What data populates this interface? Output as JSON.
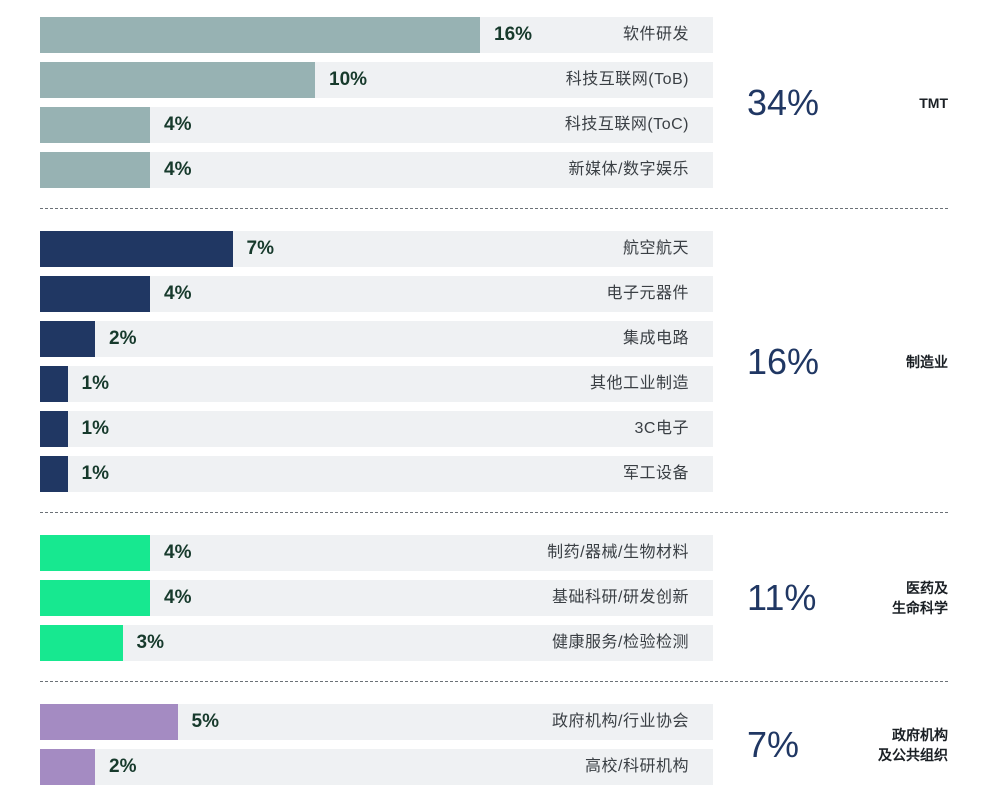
{
  "chart_data": {
    "type": "bar",
    "orientation": "horizontal",
    "value_unit": "%",
    "xlim": [
      0,
      100
    ],
    "groups": [
      {
        "name": "TMT",
        "total": "34%",
        "color": "#97b2b3",
        "items": [
          {
            "label": "软件研发",
            "value": 16,
            "value_label": "16%"
          },
          {
            "label": "科技互联网(ToB)",
            "value": 10,
            "value_label": "10%"
          },
          {
            "label": "科技互联网(ToC)",
            "value": 4,
            "value_label": "4%"
          },
          {
            "label": "新媒体/数字娱乐",
            "value": 4,
            "value_label": "4%"
          }
        ]
      },
      {
        "name": "制造业",
        "total": "16%",
        "color": "#203763",
        "items": [
          {
            "label": "航空航天",
            "value": 7,
            "value_label": "7%"
          },
          {
            "label": "电子元器件",
            "value": 4,
            "value_label": "4%"
          },
          {
            "label": "集成电路",
            "value": 2,
            "value_label": "2%"
          },
          {
            "label": "其他工业制造",
            "value": 1,
            "value_label": "1%"
          },
          {
            "label": "3C电子",
            "value": 1,
            "value_label": "1%"
          },
          {
            "label": "军工设备",
            "value": 1,
            "value_label": "1%"
          }
        ]
      },
      {
        "name": "医药及\n生命科学",
        "total": "11%",
        "color": "#17e890",
        "items": [
          {
            "label": "制药/器械/生物材料",
            "value": 4,
            "value_label": "4%"
          },
          {
            "label": "基础科研/研发创新",
            "value": 4,
            "value_label": "4%"
          },
          {
            "label": "健康服务/检验检测",
            "value": 3,
            "value_label": "3%"
          }
        ]
      },
      {
        "name": "政府机构\n及公共组织",
        "total": "7%",
        "color": "#a48bc2",
        "items": [
          {
            "label": "政府机构/行业协会",
            "value": 5,
            "value_label": "5%"
          },
          {
            "label": "高校/科研机构",
            "value": 2,
            "value_label": "2%"
          }
        ]
      }
    ]
  }
}
